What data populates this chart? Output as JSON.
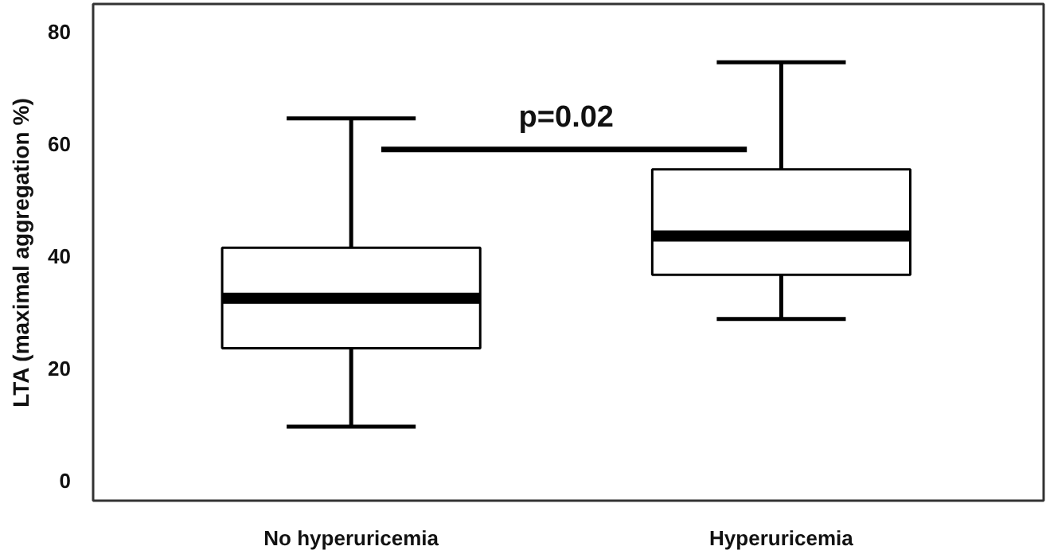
{
  "chart_data": {
    "type": "box",
    "ylabel": "LTA (maximal aggregation %)",
    "categories": [
      "No hyperuricemia",
      "Hyperuricemia"
    ],
    "boxes": [
      {
        "low": 9.6,
        "q1": 23.6,
        "median": 32.5,
        "q3": 41.5,
        "high": 64.6
      },
      {
        "low": 28.8,
        "q1": 36.7,
        "median": 43.6,
        "q3": 55.5,
        "high": 74.6
      }
    ],
    "ylim": [
      -3.6,
      85
    ],
    "yticks": [
      0,
      20,
      40,
      60,
      80
    ],
    "grid": false,
    "annotations": [
      "p=0.02"
    ]
  }
}
